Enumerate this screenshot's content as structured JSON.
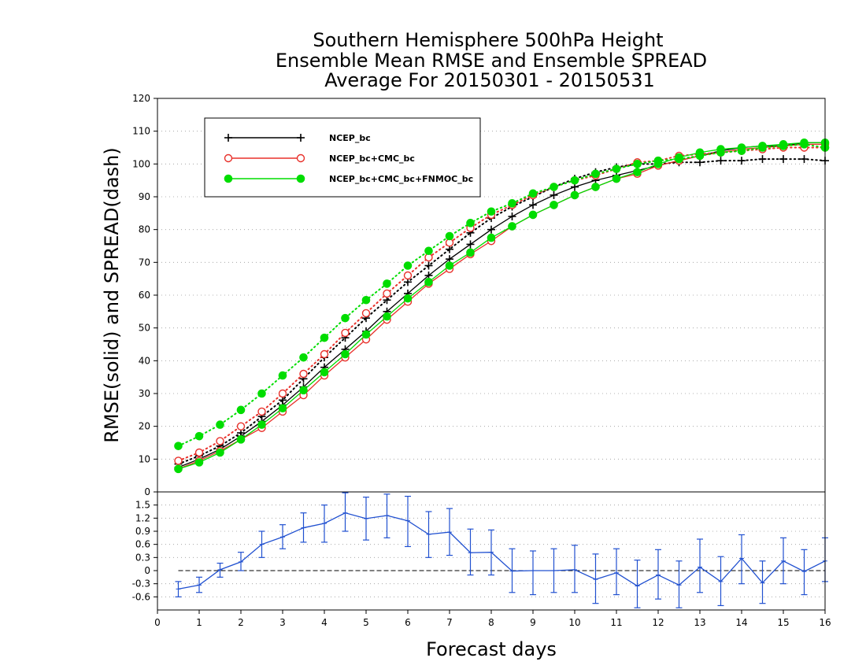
{
  "chart_data": [
    {
      "type": "line",
      "title": [
        "Southern Hemisphere 500hPa Height",
        "Ensemble Mean RMSE and Ensemble SPREAD",
        "Average For 20150301 - 20150531"
      ],
      "ylabel": "RMSE(solid) and SPREAD(dash)",
      "ylim": [
        0,
        120
      ],
      "yticks": [
        "0",
        "10",
        "20",
        "30",
        "40",
        "50",
        "60",
        "70",
        "80",
        "90",
        "100",
        "110",
        "120"
      ],
      "grid": true,
      "legend_position": "top-left",
      "x": [
        0.5,
        1,
        1.5,
        2,
        2.5,
        3,
        3.5,
        4,
        4.5,
        5,
        5.5,
        6,
        6.5,
        7,
        7.5,
        8,
        8.5,
        9,
        9.5,
        10,
        10.5,
        11,
        11.5,
        12,
        12.5,
        13,
        13.5,
        14,
        14.5,
        15,
        15.5,
        16
      ],
      "series": [
        {
          "name": "NCEP_bc",
          "metric": "RMSE",
          "style": "solid",
          "color": "#000000",
          "marker": "plus",
          "values": [
            7.5,
            10,
            13,
            17,
            21.5,
            26.5,
            32,
            38,
            43.5,
            49,
            55,
            60.5,
            66,
            71,
            75.5,
            80,
            84,
            87.5,
            90.5,
            93,
            95,
            96.5,
            98,
            99.5,
            101,
            102.5,
            104,
            105,
            105.5,
            105.5,
            106.5,
            106.5
          ]
        },
        {
          "name": "NCEP_bc",
          "metric": "SPREAD",
          "style": "dash",
          "color": "#000000",
          "marker": "plus",
          "values": [
            8.5,
            11,
            14,
            18,
            23,
            28,
            34.5,
            41,
            47,
            53,
            58.5,
            64,
            69,
            74,
            79,
            83.5,
            87,
            90,
            93,
            95.5,
            97.5,
            99,
            100,
            100,
            100.5,
            100.5,
            101,
            101,
            101.5,
            101.5,
            101.5,
            101
          ]
        },
        {
          "name": "NCEP_bc+CMC_bc",
          "metric": "RMSE",
          "style": "solid",
          "color": "#e8302a",
          "marker": "open-circle",
          "values": [
            7,
            9.5,
            12.5,
            16,
            19.5,
            24.5,
            29.5,
            35.5,
            41,
            46.5,
            52.5,
            58,
            63.5,
            68,
            72.5,
            76.5,
            81,
            84.5,
            87.5,
            90.5,
            93,
            95.5,
            97,
            99.5,
            101,
            102.5,
            103.5,
            104.5,
            105,
            105.5,
            106,
            106
          ]
        },
        {
          "name": "NCEP_bc+CMC_bc",
          "metric": "SPREAD",
          "style": "dash",
          "color": "#e8302a",
          "marker": "open-circle",
          "values": [
            9.5,
            12,
            15.5,
            20,
            24.5,
            30,
            36,
            42,
            48.5,
            54.5,
            60.5,
            66,
            71.5,
            76,
            80.5,
            84.5,
            87.5,
            90.5,
            93,
            95,
            96.5,
            98.5,
            100.5,
            101,
            102.5,
            103,
            103.5,
            104,
            104.5,
            105,
            105,
            105
          ]
        },
        {
          "name": "NCEP_bc+CMC_bc+FNMOC_bc",
          "metric": "RMSE",
          "style": "solid",
          "color": "#00dd00",
          "marker": "filled-circle",
          "values": [
            7,
            9,
            12,
            16,
            20.5,
            25.5,
            31,
            36.5,
            42,
            48,
            53.5,
            59,
            64,
            69,
            73,
            77.5,
            81,
            84.5,
            87.5,
            90.5,
            93,
            95.5,
            97.5,
            100,
            102,
            103.5,
            104.5,
            105,
            105.5,
            106,
            106.5,
            106.5
          ]
        },
        {
          "name": "NCEP_bc+CMC_bc+FNMOC_bc",
          "metric": "SPREAD",
          "style": "dash",
          "color": "#00dd00",
          "marker": "filled-circle",
          "values": [
            14,
            17,
            20.5,
            25,
            30,
            35.5,
            41,
            47,
            53,
            58.5,
            63.5,
            69,
            73.5,
            78,
            82,
            85.5,
            88,
            91,
            93,
            95,
            97,
            98.5,
            100,
            101,
            101.5,
            102.5,
            103.5,
            104,
            105,
            105.5,
            106,
            105
          ]
        }
      ]
    },
    {
      "type": "line",
      "xlabel": "Forecast days",
      "xlim": [
        0,
        16
      ],
      "xticks": [
        "0",
        "1",
        "2",
        "3",
        "4",
        "5",
        "6",
        "7",
        "8",
        "9",
        "10",
        "11",
        "12",
        "13",
        "14",
        "15",
        "16"
      ],
      "ylim": [
        -0.9,
        1.8
      ],
      "yticks": [
        "-0.6",
        "-0.3",
        "0",
        "0.3",
        "0.6",
        "0.9",
        "1.2",
        "1.5"
      ],
      "zero_line": "dashed",
      "x": [
        0.5,
        1,
        1.5,
        2,
        2.5,
        3,
        3.5,
        4,
        4.5,
        5,
        5.5,
        6,
        6.5,
        7,
        7.5,
        8,
        8.5,
        9,
        9.5,
        10,
        10.5,
        11,
        11.5,
        12,
        12.5,
        13,
        13.5,
        14,
        14.5,
        15,
        15.5,
        16
      ],
      "series": [
        {
          "color": "#2050d0",
          "values": [
            -0.42,
            -0.33,
            0.02,
            0.2,
            0.6,
            0.77,
            0.98,
            1.08,
            1.32,
            1.19,
            1.26,
            1.14,
            0.83,
            0.88,
            0.41,
            0.42,
            -0.01,
            0.0,
            0.0,
            0.02,
            -0.2,
            -0.05,
            -0.35,
            -0.1,
            -0.33,
            0.08,
            -0.25,
            0.28,
            -0.28,
            0.22,
            -0.02,
            0.22
          ],
          "err_low": [
            -0.6,
            -0.5,
            -0.15,
            0.0,
            0.3,
            0.5,
            0.65,
            0.65,
            0.9,
            0.7,
            0.75,
            0.55,
            0.3,
            0.35,
            -0.1,
            -0.1,
            -0.5,
            -0.55,
            -0.5,
            -0.5,
            -0.75,
            -0.55,
            -0.85,
            -0.65,
            -0.85,
            -0.5,
            -0.8,
            -0.3,
            -0.75,
            -0.3,
            -0.55,
            -0.25
          ],
          "err_high": [
            -0.25,
            -0.15,
            0.17,
            0.42,
            0.9,
            1.05,
            1.32,
            1.5,
            1.78,
            1.68,
            1.75,
            1.7,
            1.35,
            1.42,
            0.95,
            0.93,
            0.5,
            0.45,
            0.5,
            0.58,
            0.38,
            0.5,
            0.24,
            0.48,
            0.22,
            0.72,
            0.32,
            0.82,
            0.22,
            0.75,
            0.48,
            0.75
          ]
        }
      ]
    }
  ]
}
